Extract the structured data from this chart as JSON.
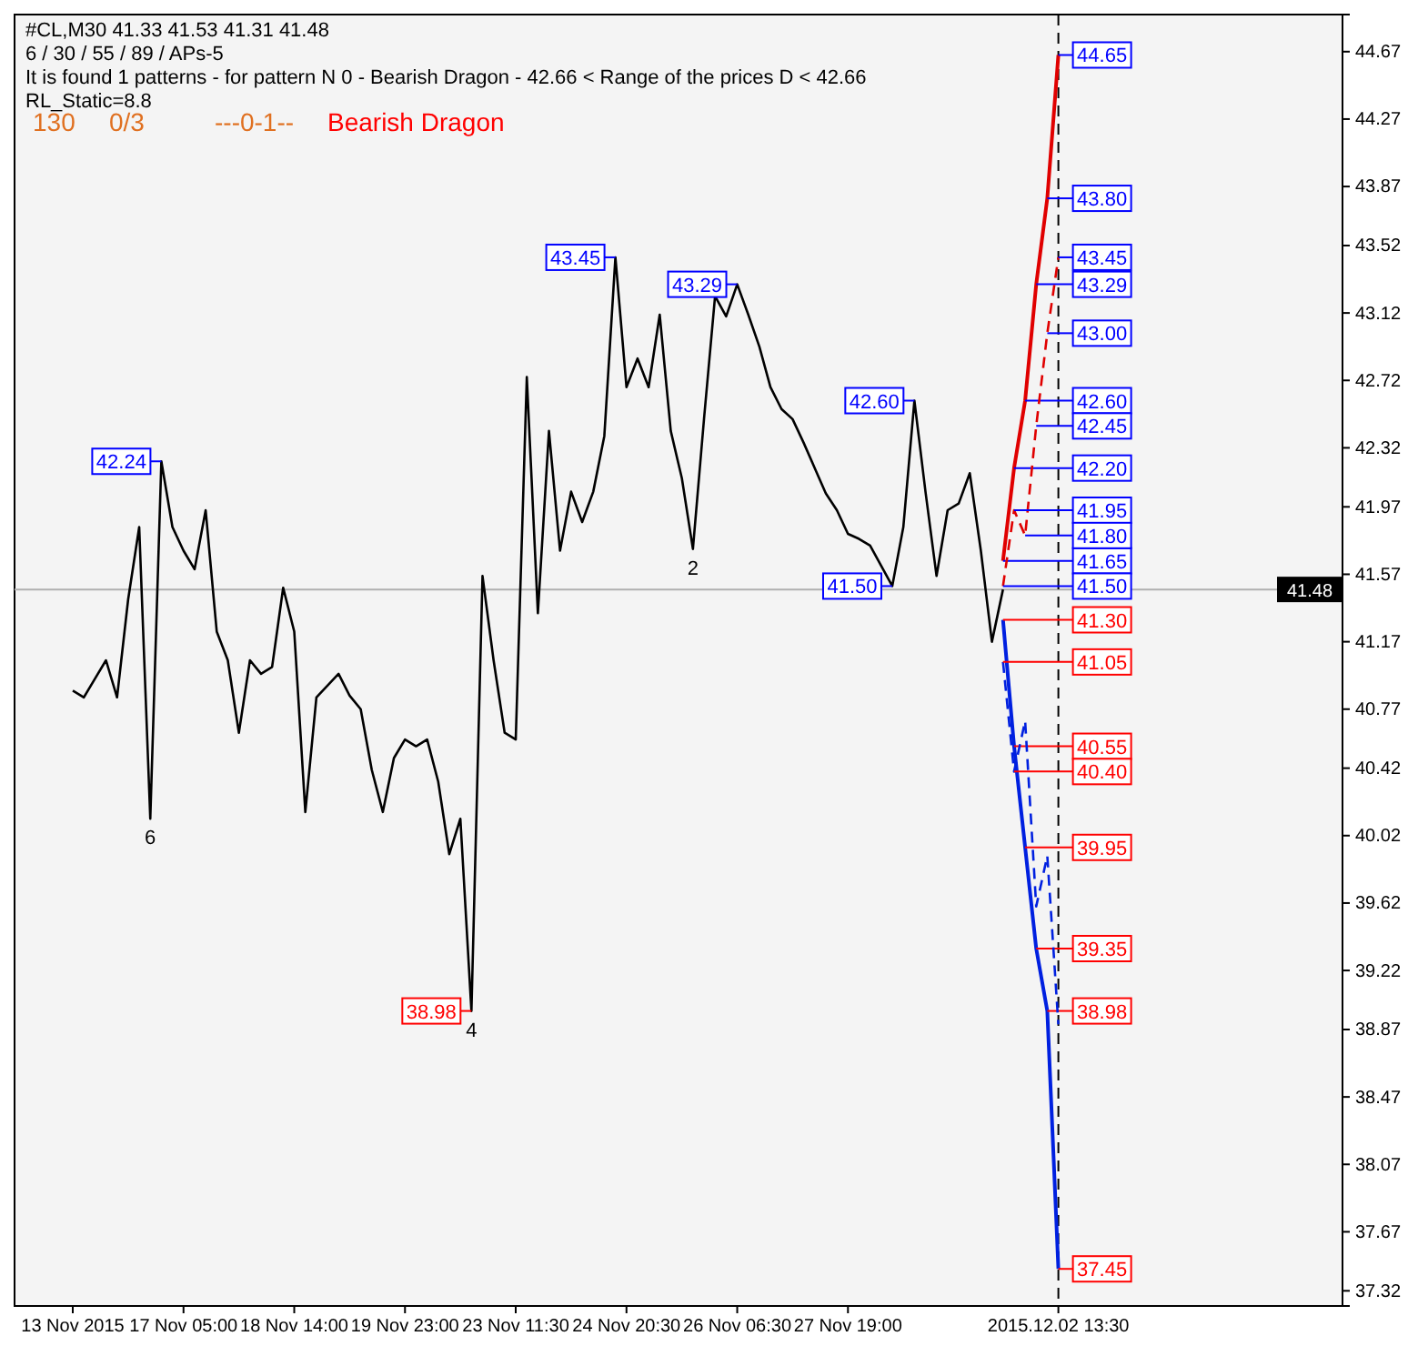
{
  "chart_data": {
    "type": "line",
    "title": "#CL,M30  41.33 41.53 41.31 41.48",
    "subtitle": "6 / 30 / 55 / 89 / APs-5",
    "categories": [
      "13 Nov 2015",
      null,
      null,
      null,
      null,
      null,
      null,
      null,
      null,
      null,
      "17 Nov 05:00",
      null,
      null,
      null,
      null,
      null,
      null,
      null,
      null,
      null,
      "18 Nov 14:00",
      null,
      null,
      null,
      null,
      null,
      null,
      null,
      null,
      null,
      "19 Nov 23:00",
      null,
      null,
      null,
      null,
      null,
      null,
      null,
      null,
      null,
      "23 Nov 11:30",
      null,
      null,
      null,
      null,
      null,
      null,
      null,
      null,
      null,
      "24 Nov 20:30",
      null,
      null,
      null,
      null,
      null,
      null,
      null,
      null,
      null,
      "26 Nov 06:30",
      null,
      null,
      null,
      null,
      null,
      null,
      null,
      null,
      null,
      "27 Nov 19:00",
      null,
      null,
      null,
      null,
      null,
      null,
      null,
      null,
      null,
      null,
      null,
      null,
      null,
      null,
      null,
      null,
      null,
      null,
      "2015.12.02 13:30",
      null,
      null,
      null,
      null,
      null,
      null,
      null,
      null,
      null,
      null,
      null,
      null,
      null,
      null,
      null,
      null,
      null,
      null,
      null,
      null,
      null,
      null,
      null,
      null,
      null
    ],
    "ylim": [
      37.23,
      44.89
    ],
    "yticks": [
      37.32,
      37.67,
      38.07,
      38.47,
      38.87,
      39.22,
      39.62,
      40.02,
      40.42,
      40.77,
      41.17,
      41.57,
      41.97,
      42.32,
      42.72,
      43.12,
      43.52,
      43.87,
      44.27,
      44.67
    ],
    "grid": false,
    "series": [
      {
        "color": "#000000",
        "line_style": "solid",
        "values": [
          40.88,
          40.84,
          40.95,
          41.06,
          40.84,
          41.42,
          41.85,
          40.12,
          42.24,
          41.85,
          41.71,
          41.6,
          41.95,
          41.23,
          41.06,
          40.63,
          41.06,
          40.98,
          41.02,
          41.49,
          41.23,
          40.16,
          40.84,
          40.91,
          40.98,
          40.85,
          40.77,
          40.41,
          40.16,
          40.48,
          40.59,
          40.55,
          40.59,
          40.34,
          39.91,
          40.12,
          38.98,
          41.56,
          41.06,
          40.63,
          40.59,
          42.74,
          41.34,
          42.42,
          41.71,
          42.06,
          41.88,
          42.06,
          42.39,
          43.45,
          42.68,
          42.85,
          42.68,
          43.11,
          42.42,
          42.14,
          41.72,
          42.49,
          43.22,
          43.1,
          43.29,
          43.11,
          42.92,
          42.68,
          42.55,
          42.49,
          42.35,
          42.2,
          42.05,
          41.95,
          41.81,
          41.78,
          41.74,
          41.62,
          41.5,
          41.85,
          42.6,
          42.06,
          41.56,
          41.95,
          41.99,
          42.17,
          41.71,
          41.17,
          41.48,
          null,
          null,
          null,
          null,
          null,
          null,
          null,
          null,
          null,
          null,
          null,
          null,
          null,
          null,
          null,
          null,
          null,
          null,
          null,
          null,
          null,
          null,
          null,
          null,
          null,
          null,
          null,
          null,
          null,
          null
        ],
        "value_labels": [
          null,
          null,
          null,
          null,
          null,
          null,
          null,
          null,
          "42.24",
          null,
          null,
          null,
          null,
          null,
          null,
          null,
          null,
          null,
          null,
          null,
          null,
          null,
          null,
          null,
          null,
          null,
          null,
          null,
          null,
          null,
          null,
          null,
          null,
          null,
          null,
          null,
          "38.98",
          null,
          null,
          null,
          null,
          null,
          null,
          null,
          null,
          null,
          null,
          null,
          null,
          "43.45",
          null,
          null,
          null,
          null,
          null,
          null,
          null,
          null,
          null,
          null,
          "43.29",
          null,
          null,
          null,
          null,
          null,
          null,
          null,
          null,
          null,
          null,
          null,
          null,
          null,
          "41.50",
          null,
          "42.60",
          null,
          null,
          null,
          null,
          null,
          null,
          null,
          null,
          null,
          null,
          null,
          null,
          null,
          null,
          null,
          null,
          null,
          null,
          null,
          null,
          null,
          null,
          null,
          null,
          null,
          null,
          null,
          null,
          null,
          null,
          null,
          null,
          null,
          null,
          null,
          null,
          null,
          null
        ]
      },
      {
        "color": "#e00000",
        "line_style": "solid",
        "values": [
          null,
          null,
          null,
          null,
          null,
          null,
          null,
          null,
          null,
          null,
          null,
          null,
          null,
          null,
          null,
          null,
          null,
          null,
          null,
          null,
          null,
          null,
          null,
          null,
          null,
          null,
          null,
          null,
          null,
          null,
          null,
          null,
          null,
          null,
          null,
          null,
          null,
          null,
          null,
          null,
          null,
          null,
          null,
          null,
          null,
          null,
          null,
          null,
          null,
          null,
          null,
          null,
          null,
          null,
          null,
          null,
          null,
          null,
          null,
          null,
          null,
          null,
          null,
          null,
          null,
          null,
          null,
          null,
          null,
          null,
          null,
          null,
          null,
          null,
          null,
          null,
          null,
          null,
          null,
          null,
          null,
          null,
          null,
          null,
          41.65,
          42.2,
          42.6,
          43.29,
          43.8,
          44.65,
          null,
          null,
          null,
          null,
          null,
          null,
          null,
          null,
          null,
          null,
          null,
          null,
          null,
          null,
          null,
          null,
          null,
          null,
          null,
          null,
          null,
          null,
          null,
          null,
          null
        ],
        "value_labels": [
          null,
          null,
          null,
          null,
          null,
          null,
          null,
          null,
          null,
          null,
          null,
          null,
          null,
          null,
          null,
          null,
          null,
          null,
          null,
          null,
          null,
          null,
          null,
          null,
          null,
          null,
          null,
          null,
          null,
          null,
          null,
          null,
          null,
          null,
          null,
          null,
          null,
          null,
          null,
          null,
          null,
          null,
          null,
          null,
          null,
          null,
          null,
          null,
          null,
          null,
          null,
          null,
          null,
          null,
          null,
          null,
          null,
          null,
          null,
          null,
          null,
          null,
          null,
          null,
          null,
          null,
          null,
          null,
          null,
          null,
          null,
          null,
          null,
          null,
          null,
          null,
          null,
          null,
          null,
          null,
          null,
          null,
          null,
          null,
          "41.65",
          "42.20",
          "42.60",
          "43.29",
          "43.80",
          "44.65",
          null,
          null,
          null,
          null,
          null,
          null,
          null,
          null,
          null,
          null,
          null,
          null,
          null,
          null,
          null,
          null,
          null,
          null,
          null,
          null,
          null,
          null,
          null,
          null,
          null
        ]
      },
      {
        "color": "#e00000",
        "line_style": "dashed",
        "values": [
          null,
          null,
          null,
          null,
          null,
          null,
          null,
          null,
          null,
          null,
          null,
          null,
          null,
          null,
          null,
          null,
          null,
          null,
          null,
          null,
          null,
          null,
          null,
          null,
          null,
          null,
          null,
          null,
          null,
          null,
          null,
          null,
          null,
          null,
          null,
          null,
          null,
          null,
          null,
          null,
          null,
          null,
          null,
          null,
          null,
          null,
          null,
          null,
          null,
          null,
          null,
          null,
          null,
          null,
          null,
          null,
          null,
          null,
          null,
          null,
          null,
          null,
          null,
          null,
          null,
          null,
          null,
          null,
          null,
          null,
          null,
          null,
          null,
          null,
          null,
          null,
          null,
          null,
          null,
          null,
          null,
          null,
          null,
          null,
          41.5,
          41.95,
          41.8,
          42.45,
          43.0,
          43.45,
          null,
          null,
          null,
          null,
          null,
          null,
          null,
          null,
          null,
          null,
          null,
          null,
          null,
          null,
          null,
          null,
          null,
          null,
          null,
          null,
          null,
          null,
          null,
          null,
          null
        ],
        "value_labels": [
          null,
          null,
          null,
          null,
          null,
          null,
          null,
          null,
          null,
          null,
          null,
          null,
          null,
          null,
          null,
          null,
          null,
          null,
          null,
          null,
          null,
          null,
          null,
          null,
          null,
          null,
          null,
          null,
          null,
          null,
          null,
          null,
          null,
          null,
          null,
          null,
          null,
          null,
          null,
          null,
          null,
          null,
          null,
          null,
          null,
          null,
          null,
          null,
          null,
          null,
          null,
          null,
          null,
          null,
          null,
          null,
          null,
          null,
          null,
          null,
          null,
          null,
          null,
          null,
          null,
          null,
          null,
          null,
          null,
          null,
          null,
          null,
          null,
          null,
          null,
          null,
          null,
          null,
          null,
          null,
          null,
          null,
          null,
          null,
          "41.50",
          "41.95",
          "41.80",
          "42.45",
          "43.00",
          "43.45",
          null,
          null,
          null,
          null,
          null,
          null,
          null,
          null,
          null,
          null,
          null,
          null,
          null,
          null,
          null,
          null,
          null,
          null,
          null,
          null,
          null,
          null,
          null,
          null,
          null
        ]
      },
      {
        "color": "#0020e0",
        "line_style": "solid",
        "values": [
          null,
          null,
          null,
          null,
          null,
          null,
          null,
          null,
          null,
          null,
          null,
          null,
          null,
          null,
          null,
          null,
          null,
          null,
          null,
          null,
          null,
          null,
          null,
          null,
          null,
          null,
          null,
          null,
          null,
          null,
          null,
          null,
          null,
          null,
          null,
          null,
          null,
          null,
          null,
          null,
          null,
          null,
          null,
          null,
          null,
          null,
          null,
          null,
          null,
          null,
          null,
          null,
          null,
          null,
          null,
          null,
          null,
          null,
          null,
          null,
          null,
          null,
          null,
          null,
          null,
          null,
          null,
          null,
          null,
          null,
          null,
          null,
          null,
          null,
          null,
          null,
          null,
          null,
          null,
          null,
          null,
          null,
          null,
          null,
          41.3,
          40.55,
          39.95,
          39.35,
          38.98,
          37.45,
          null,
          null,
          null,
          null,
          null,
          null,
          null,
          null,
          null,
          null,
          null,
          null,
          null,
          null,
          null,
          null,
          null,
          null,
          null,
          null,
          null,
          null,
          null,
          null,
          null
        ],
        "value_labels": [
          null,
          null,
          null,
          null,
          null,
          null,
          null,
          null,
          null,
          null,
          null,
          null,
          null,
          null,
          null,
          null,
          null,
          null,
          null,
          null,
          null,
          null,
          null,
          null,
          null,
          null,
          null,
          null,
          null,
          null,
          null,
          null,
          null,
          null,
          null,
          null,
          null,
          null,
          null,
          null,
          null,
          null,
          null,
          null,
          null,
          null,
          null,
          null,
          null,
          null,
          null,
          null,
          null,
          null,
          null,
          null,
          null,
          null,
          null,
          null,
          null,
          null,
          null,
          null,
          null,
          null,
          null,
          null,
          null,
          null,
          null,
          null,
          null,
          null,
          null,
          null,
          null,
          null,
          null,
          null,
          null,
          null,
          null,
          null,
          "41.30",
          "40.55",
          "39.95",
          "39.35",
          "38.98",
          "37.45",
          null,
          null,
          null,
          null,
          null,
          null,
          null,
          null,
          null,
          null,
          null,
          null,
          null,
          null,
          null,
          null,
          null,
          null,
          null,
          null,
          null,
          null,
          null,
          null,
          null
        ]
      },
      {
        "color": "#0020e0",
        "line_style": "dashed",
        "values": [
          null,
          null,
          null,
          null,
          null,
          null,
          null,
          null,
          null,
          null,
          null,
          null,
          null,
          null,
          null,
          null,
          null,
          null,
          null,
          null,
          null,
          null,
          null,
          null,
          null,
          null,
          null,
          null,
          null,
          null,
          null,
          null,
          null,
          null,
          null,
          null,
          null,
          null,
          null,
          null,
          null,
          null,
          null,
          null,
          null,
          null,
          null,
          null,
          null,
          null,
          null,
          null,
          null,
          null,
          null,
          null,
          null,
          null,
          null,
          null,
          null,
          null,
          null,
          null,
          null,
          null,
          null,
          null,
          null,
          null,
          null,
          null,
          null,
          null,
          null,
          null,
          null,
          null,
          null,
          null,
          null,
          null,
          null,
          null,
          41.05,
          40.4,
          40.7,
          39.6,
          39.9,
          38.9,
          null,
          null,
          null,
          null,
          null,
          null,
          null,
          null,
          null,
          null,
          null,
          null,
          null,
          null,
          null,
          null,
          null,
          null,
          null,
          null,
          null,
          null,
          null,
          null,
          null
        ],
        "value_labels": [
          null,
          null,
          null,
          null,
          null,
          null,
          null,
          null,
          null,
          null,
          null,
          null,
          null,
          null,
          null,
          null,
          null,
          null,
          null,
          null,
          null,
          null,
          null,
          null,
          null,
          null,
          null,
          null,
          null,
          null,
          null,
          null,
          null,
          null,
          null,
          null,
          null,
          null,
          null,
          null,
          null,
          null,
          null,
          null,
          null,
          null,
          null,
          null,
          null,
          null,
          null,
          null,
          null,
          null,
          null,
          null,
          null,
          null,
          null,
          null,
          null,
          null,
          null,
          null,
          null,
          null,
          null,
          null,
          null,
          null,
          null,
          null,
          null,
          null,
          null,
          null,
          null,
          null,
          null,
          null,
          null,
          null,
          null,
          null,
          "41.05",
          "40.40",
          null,
          null,
          null,
          null,
          null,
          null,
          null,
          null,
          null,
          null,
          null,
          null,
          null,
          null,
          null,
          null,
          null,
          null,
          null,
          null,
          null,
          null,
          null,
          null,
          null,
          null,
          null,
          null,
          null
        ]
      }
    ],
    "ref_lines": [
      {
        "axis": "y",
        "value": 41.48,
        "label": "41.48",
        "color": "#b0b0b0"
      },
      {
        "axis": "x",
        "value": "2015.12.02 13:30",
        "color": "#000000",
        "line_style": "dashed"
      }
    ],
    "annotations": [
      "It is found 1 patterns  -  for pattern N 0 - Bearish Dragon - 42.66 < Range of the prices D < 42.66",
      "RL_Static=8.8",
      "130",
      "0/3",
      "---0-1--",
      "Bearish Dragon",
      {
        "text": "6",
        "y": 40.12
      },
      {
        "text": "4",
        "y": 38.98
      },
      {
        "text": "2",
        "y": 41.72
      }
    ]
  }
}
